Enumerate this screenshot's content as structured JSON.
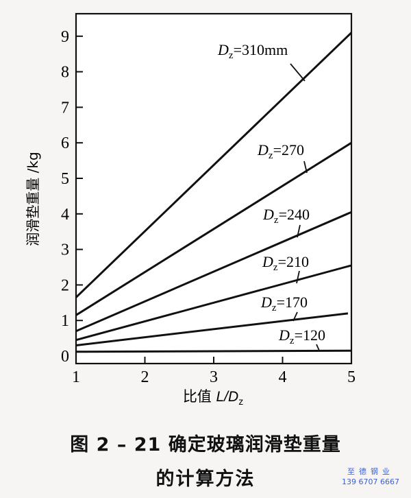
{
  "chart_data": {
    "type": "line",
    "title": "",
    "xlabel": "比值 L/Dz",
    "ylabel": "润滑垫重量 /kg",
    "xlim": [
      1,
      5
    ],
    "ylim": [
      0,
      9.5
    ],
    "xticks": [
      1,
      2,
      3,
      4,
      5
    ],
    "yticks": [
      0,
      1,
      2,
      3,
      4,
      5,
      6,
      7,
      8,
      9
    ],
    "grid": false,
    "legend": "inline annotations with leader lines",
    "series": [
      {
        "name": "Dz=310mm",
        "label_main": "D",
        "label_sub": "z",
        "label_rest": "=310mm",
        "x": [
          1,
          5
        ],
        "y": [
          1.65,
          9.1
        ]
      },
      {
        "name": "Dz=270",
        "label_main": "D",
        "label_sub": "z",
        "label_rest": "=270",
        "x": [
          1,
          5
        ],
        "y": [
          1.15,
          6.0
        ]
      },
      {
        "name": "Dz=240",
        "label_main": "D",
        "label_sub": "z",
        "label_rest": "=240",
        "x": [
          1,
          5
        ],
        "y": [
          0.7,
          4.05
        ]
      },
      {
        "name": "Dz=210",
        "label_main": "D",
        "label_sub": "z",
        "label_rest": "=210",
        "x": [
          1,
          5
        ],
        "y": [
          0.45,
          2.55
        ]
      },
      {
        "name": "Dz=170",
        "label_main": "D",
        "label_sub": "z",
        "label_rest": "=170",
        "x": [
          1,
          4.95
        ],
        "y": [
          0.3,
          1.2
        ]
      },
      {
        "name": "Dz=120",
        "label_main": "D",
        "label_sub": "z",
        "label_rest": "=120",
        "x": [
          1,
          5
        ],
        "y": [
          0.12,
          0.15
        ]
      }
    ]
  },
  "axis": {
    "x_label_prefix": "比值 ",
    "x_label_italic": "L/D",
    "x_label_sub": "z",
    "y_label": "润滑垫重量 /kg"
  },
  "caption": {
    "line1": "图 2 – 21    确定玻璃润滑垫重量",
    "line2": "的计算方法"
  },
  "watermark": {
    "brand": "至德钢业",
    "phone": "139 6707 6667"
  }
}
